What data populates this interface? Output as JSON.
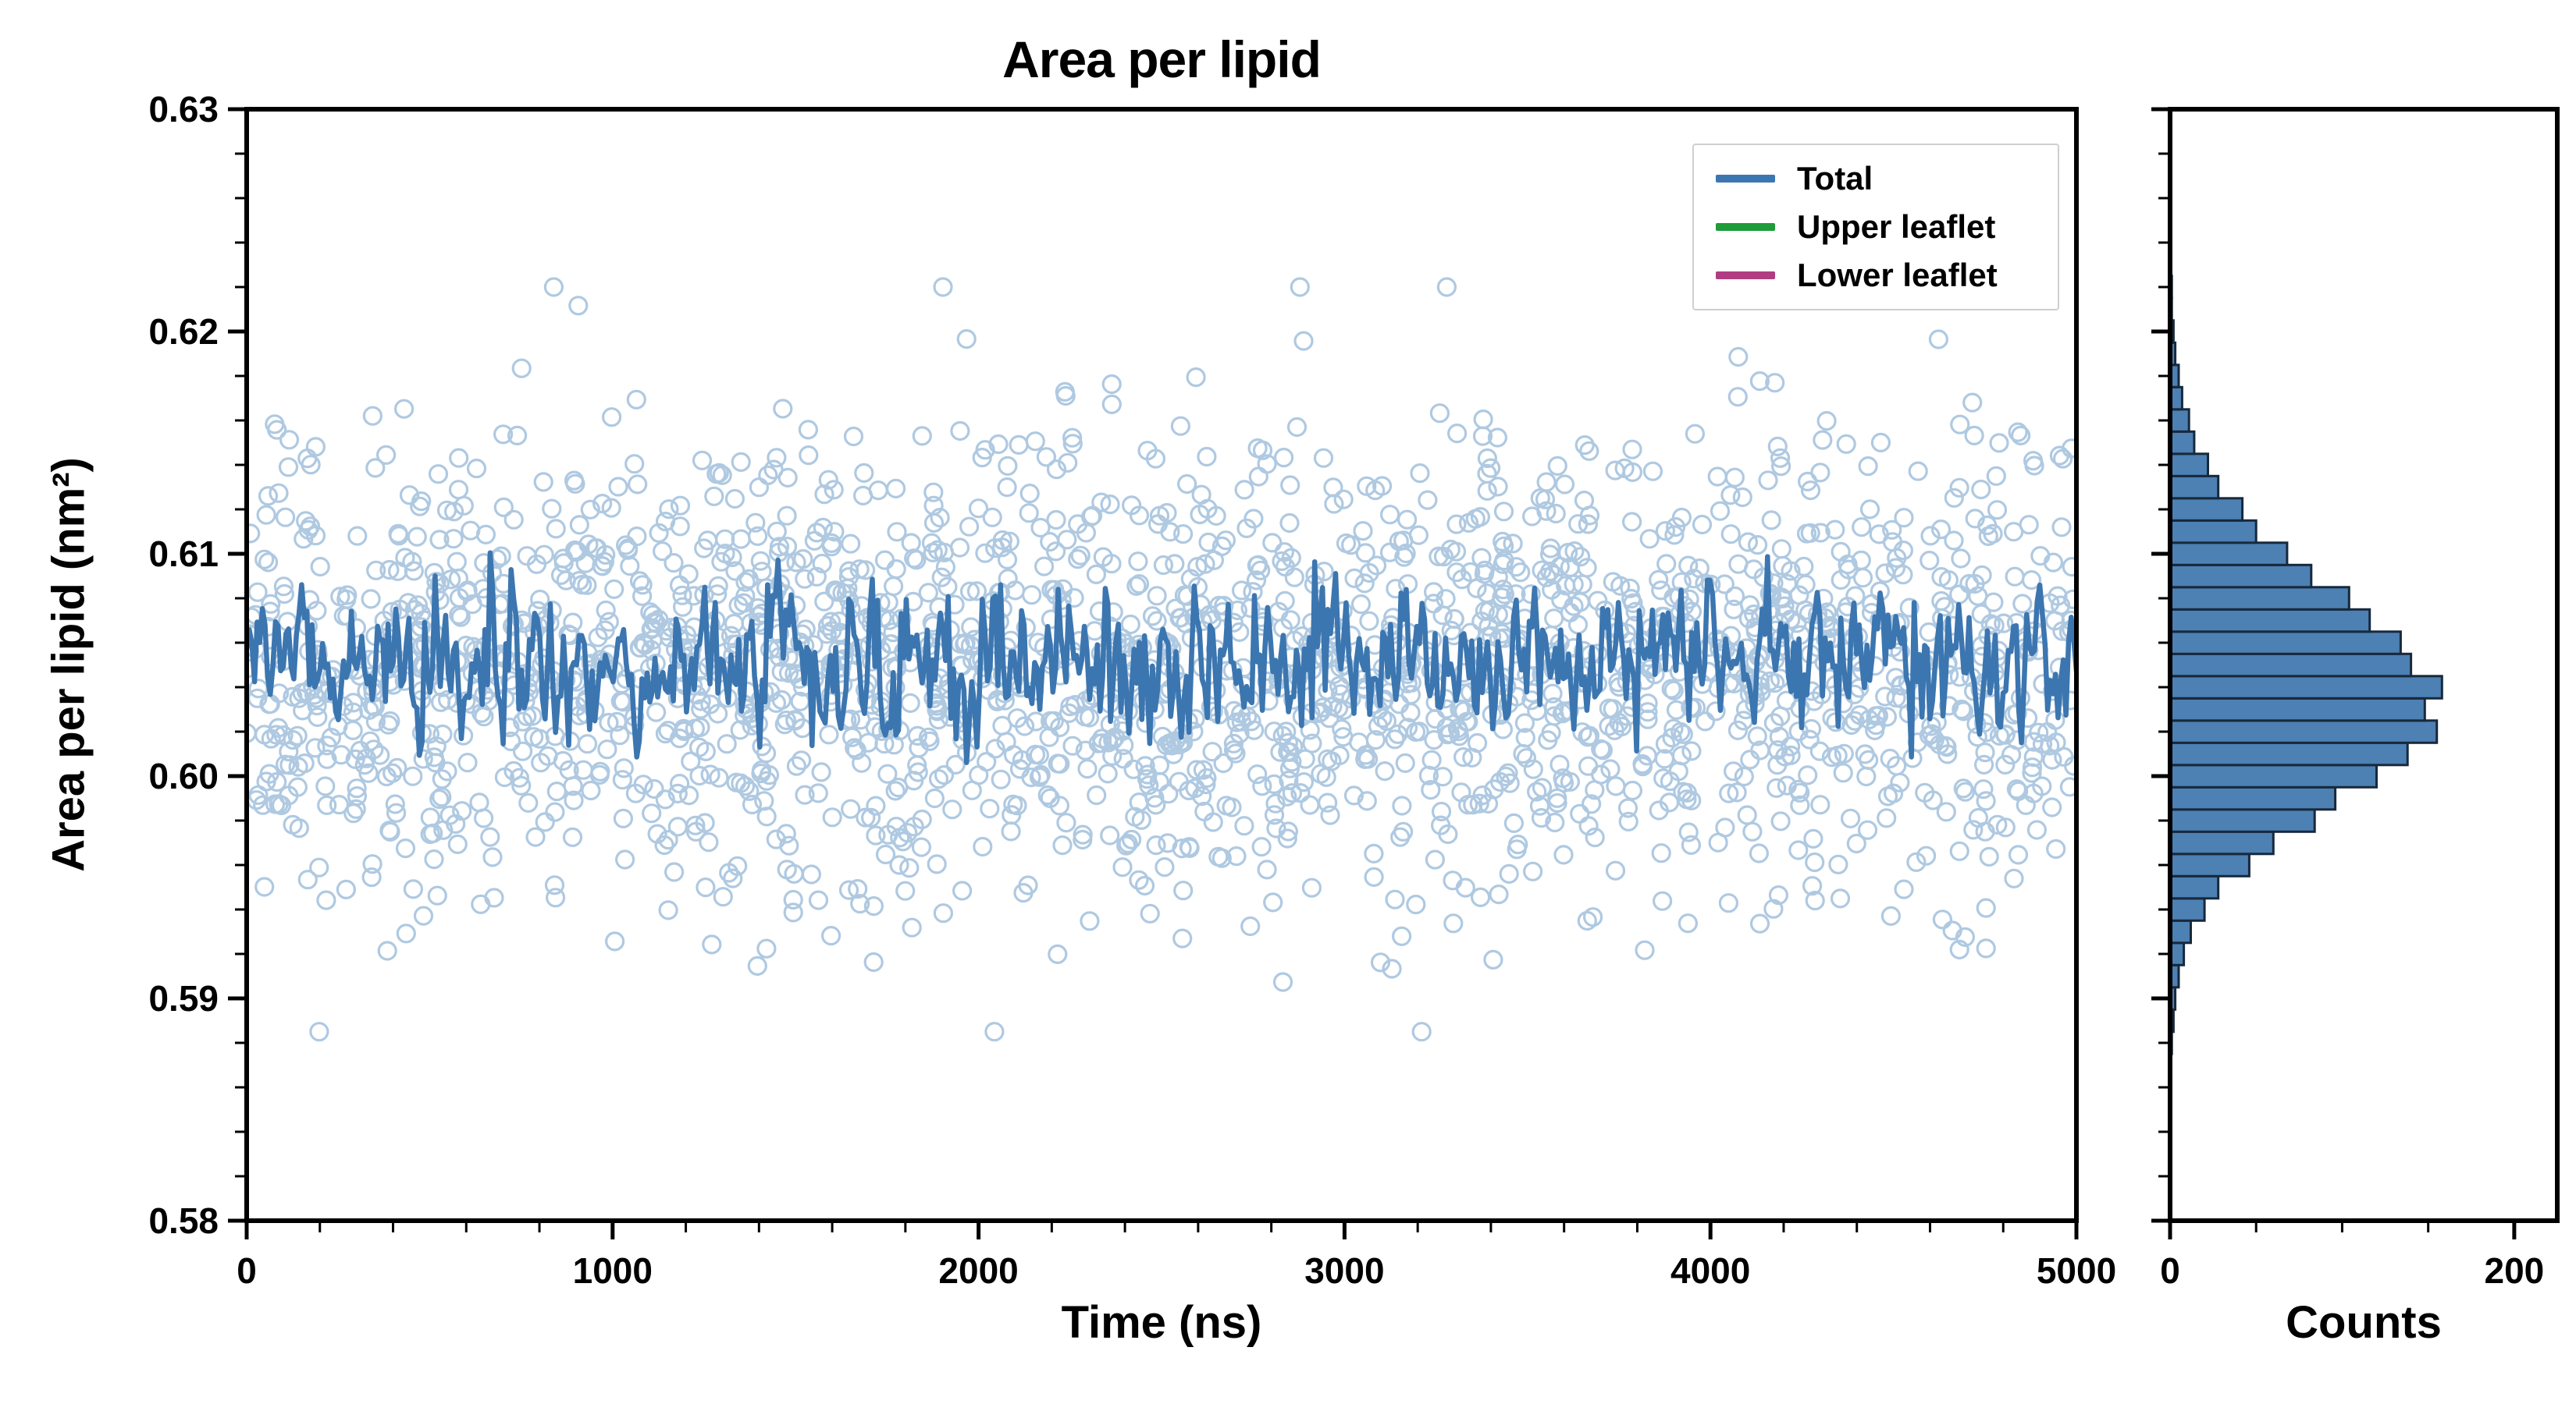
{
  "title": "Area per lipid",
  "chart_data": [
    {
      "id": "timeseries",
      "type": "scatter",
      "title": "Area per lipid",
      "xlabel": "Time (ns)",
      "ylabel": "Area per lipid (nm²)",
      "xlim": [
        0,
        5000
      ],
      "ylim": [
        0.58,
        0.63
      ],
      "xticks": [
        0,
        1000,
        2000,
        3000,
        4000,
        5000
      ],
      "xtick_labels": [
        "0",
        "1000",
        "2000",
        "3000",
        "4000",
        "5000"
      ],
      "yticks": [
        0.58,
        0.59,
        0.6,
        0.61,
        0.62,
        0.63
      ],
      "ytick_labels": [
        "0.58",
        "0.59",
        "0.60",
        "0.61",
        "0.62",
        "0.63"
      ],
      "grid": false,
      "legend": {
        "position": "upper-right",
        "entries": [
          {
            "label": "Total",
            "color": "#3c76b0"
          },
          {
            "label": "Upper leaflet",
            "color": "#1f9c3a"
          },
          {
            "label": "Lower leaflet",
            "color": "#b03c82"
          }
        ]
      },
      "series": [
        {
          "name": "Total (samples)",
          "marker": "open-circle",
          "color": "#a6c3de",
          "n_points": 2200,
          "x_range": [
            0,
            5000
          ],
          "y_mean": 0.6047,
          "y_std": 0.0052,
          "y_min": 0.5885,
          "y_max": 0.622
        },
        {
          "name": "Total (running mean)",
          "marker": "line",
          "color": "#3c76b0",
          "n_points": 700,
          "x_range": [
            0,
            5000
          ],
          "y_mean": 0.6052,
          "y_std": 0.0018,
          "y_min": 0.5995,
          "y_max": 0.6115
        }
      ]
    },
    {
      "id": "histogram",
      "type": "bar",
      "orientation": "horizontal",
      "xlabel": "Counts",
      "xlim": [
        0,
        225
      ],
      "xticks": [
        0,
        200
      ],
      "xtick_labels": [
        "0",
        "200"
      ],
      "ylim": [
        0.58,
        0.63
      ],
      "bar_color": "#4d80b3",
      "bar_edge_color": "#17293c",
      "bin_width": 0.001,
      "bin_centers": [
        0.588,
        0.589,
        0.59,
        0.591,
        0.592,
        0.593,
        0.594,
        0.595,
        0.596,
        0.597,
        0.598,
        0.599,
        0.6,
        0.601,
        0.602,
        0.603,
        0.604,
        0.605,
        0.606,
        0.607,
        0.608,
        0.609,
        0.61,
        0.611,
        0.612,
        0.613,
        0.614,
        0.615,
        0.616,
        0.617,
        0.618,
        0.619,
        0.62,
        0.621,
        0.622
      ],
      "counts": [
        1,
        2,
        3,
        5,
        8,
        12,
        20,
        28,
        46,
        60,
        84,
        96,
        120,
        138,
        155,
        148,
        158,
        140,
        134,
        116,
        104,
        82,
        68,
        50,
        42,
        28,
        22,
        14,
        11,
        7,
        5,
        3,
        2,
        1,
        1
      ]
    }
  ]
}
